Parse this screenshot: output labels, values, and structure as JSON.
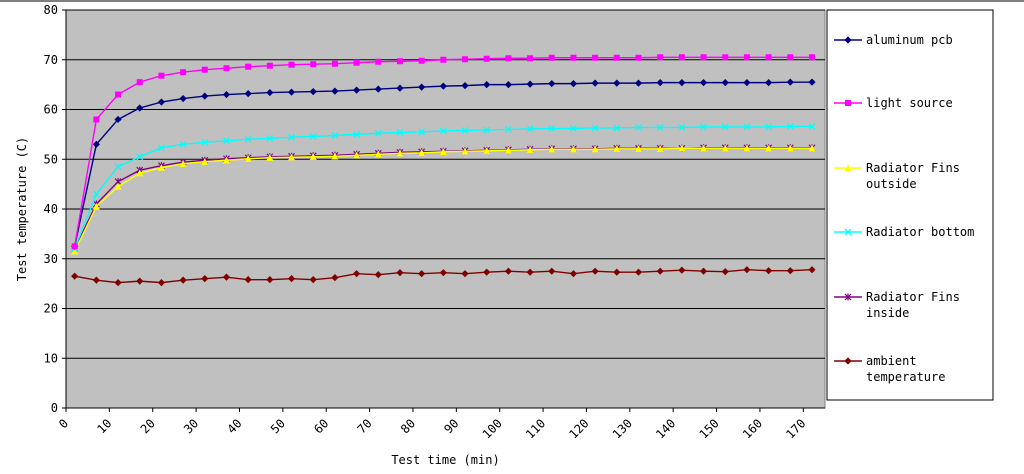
{
  "chart_data": {
    "type": "line",
    "xlabel": "Test time (min)",
    "ylabel": "Test temperature (C)",
    "xlim": [
      0,
      175
    ],
    "ylim": [
      0,
      80
    ],
    "x_ticks": [
      "0",
      "10",
      "20",
      "30",
      "40",
      "50",
      "60",
      "70",
      "80",
      "90",
      "100",
      "110",
      "120",
      "130",
      "140",
      "150",
      "160",
      "170"
    ],
    "y_ticks": [
      "0",
      "10",
      "20",
      "30",
      "40",
      "50",
      "60",
      "70",
      "80"
    ],
    "grid": "horizontal",
    "background": "#c0c0c0",
    "legend_position": "right",
    "x": [
      2,
      7,
      12,
      17,
      22,
      27,
      32,
      37,
      42,
      47,
      52,
      57,
      62,
      67,
      72,
      77,
      82,
      87,
      92,
      97,
      102,
      107,
      112,
      117,
      122,
      127,
      132,
      137,
      142,
      147,
      152,
      157,
      162,
      167,
      172
    ],
    "series": [
      {
        "name": "aluminum pcb",
        "color": "#000080",
        "marker": "diamond",
        "values": [
          32.5,
          53,
          58,
          60.3,
          61.5,
          62.2,
          62.7,
          63,
          63.2,
          63.4,
          63.5,
          63.6,
          63.7,
          63.9,
          64.1,
          64.3,
          64.5,
          64.7,
          64.8,
          65,
          65,
          65.1,
          65.2,
          65.2,
          65.3,
          65.3,
          65.3,
          65.4,
          65.4,
          65.4,
          65.4,
          65.4,
          65.4,
          65.5,
          65.5
        ]
      },
      {
        "name": "light source",
        "color": "#ff00ff",
        "marker": "square",
        "values": [
          32.5,
          58,
          63,
          65.5,
          66.8,
          67.5,
          68,
          68.3,
          68.6,
          68.8,
          69,
          69.1,
          69.2,
          69.4,
          69.6,
          69.7,
          69.8,
          70,
          70.1,
          70.2,
          70.3,
          70.3,
          70.4,
          70.4,
          70.4,
          70.4,
          70.4,
          70.5,
          70.5,
          70.5,
          70.5,
          70.5,
          70.5,
          70.5,
          70.5
        ]
      },
      {
        "name": "Radiator Fins outside",
        "color": "#ffff00",
        "marker": "triangle",
        "values": [
          31.5,
          40.5,
          44.5,
          47.2,
          48.3,
          49.1,
          49.5,
          49.8,
          50.1,
          50.3,
          50.4,
          50.5,
          50.6,
          50.8,
          51,
          51.2,
          51.3,
          51.5,
          51.6,
          51.7,
          51.8,
          51.9,
          52,
          52,
          52,
          52.1,
          52.1,
          52.1,
          52.2,
          52.2,
          52.2,
          52.2,
          52.2,
          52.2,
          52.2
        ]
      },
      {
        "name": "Radiator bottom",
        "color": "#00ffff",
        "marker": "x",
        "values": [
          32,
          43,
          48.5,
          50.5,
          52.3,
          53,
          53.4,
          53.7,
          54,
          54.2,
          54.4,
          54.6,
          54.8,
          55,
          55.2,
          55.4,
          55.5,
          55.7,
          55.8,
          55.9,
          56,
          56.1,
          56.2,
          56.2,
          56.3,
          56.3,
          56.4,
          56.4,
          56.4,
          56.5,
          56.5,
          56.5,
          56.5,
          56.6,
          56.6
        ]
      },
      {
        "name": "Radiator Fins inside",
        "color": "#800080",
        "marker": "star",
        "values": [
          32,
          41,
          45.5,
          47.8,
          48.7,
          49.4,
          49.8,
          50.1,
          50.3,
          50.5,
          50.6,
          50.7,
          50.8,
          51,
          51.2,
          51.4,
          51.5,
          51.6,
          51.7,
          51.8,
          51.9,
          52,
          52.1,
          52.1,
          52.1,
          52.2,
          52.2,
          52.2,
          52.2,
          52.3,
          52.3,
          52.3,
          52.3,
          52.3,
          52.3
        ]
      },
      {
        "name": "ambient temperature",
        "color": "#800000",
        "marker": "diamond",
        "values": [
          26.5,
          25.7,
          25.2,
          25.5,
          25.2,
          25.7,
          26,
          26.3,
          25.8,
          25.8,
          26,
          25.8,
          26.2,
          27,
          26.8,
          27.2,
          27,
          27.2,
          27,
          27.3,
          27.5,
          27.3,
          27.5,
          27,
          27.5,
          27.3,
          27.3,
          27.5,
          27.7,
          27.5,
          27.4,
          27.8,
          27.6,
          27.6,
          27.8
        ]
      }
    ],
    "legend": [
      [
        "aluminum pcb"
      ],
      [
        "light source"
      ],
      [
        "Radiator Fins",
        "outside"
      ],
      [
        "Radiator bottom"
      ],
      [
        "Radiator Fins",
        "inside"
      ],
      [
        "ambient",
        "temperature"
      ]
    ]
  }
}
